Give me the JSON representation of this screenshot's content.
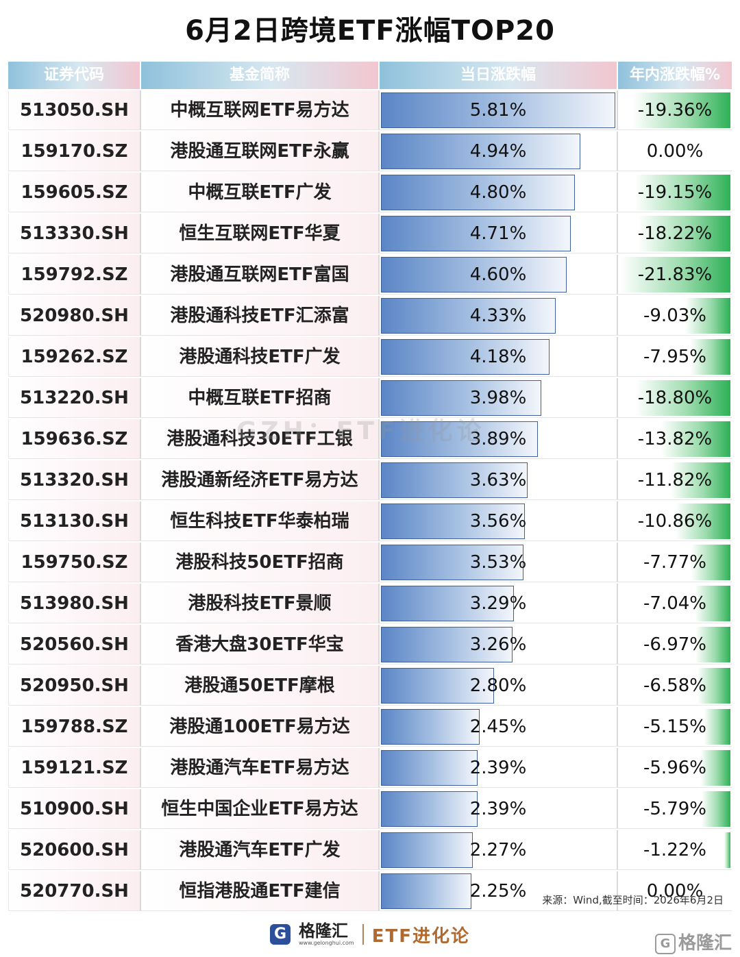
{
  "title": "6月2日跨境ETF涨幅TOP20",
  "columns": [
    "证券代码",
    "基金简称",
    "当日涨跌幅",
    "年内涨跌幅%"
  ],
  "watermark": "GZH：ETF进化论",
  "source": "来源：Wind,截至时间：2026年6月2日",
  "footer": {
    "logo_char": "G",
    "brand_name": "格隆汇",
    "brand_url": "www.gelonghui.com",
    "etf_brand": "ETF进化论",
    "corner_text": "格隆汇"
  },
  "colors": {
    "day_bar": "#5b86c6",
    "ytd_bar": "#2eb157",
    "header": "#8fc1dc"
  },
  "chart_data": {
    "type": "table",
    "rows": [
      {
        "code": "513050.SH",
        "name": "中概互联网ETF易方达",
        "day": 5.81,
        "day_label": "5.81%",
        "ytd": -19.36,
        "ytd_label": "-19.36%"
      },
      {
        "code": "159170.SZ",
        "name": "港股通互联网ETF永赢",
        "day": 4.94,
        "day_label": "4.94%",
        "ytd": 0.0,
        "ytd_label": "0.00%"
      },
      {
        "code": "159605.SZ",
        "name": "中概互联ETF广发",
        "day": 4.8,
        "day_label": "4.80%",
        "ytd": -19.15,
        "ytd_label": "-19.15%"
      },
      {
        "code": "513330.SH",
        "name": "恒生互联网ETF华夏",
        "day": 4.71,
        "day_label": "4.71%",
        "ytd": -18.22,
        "ytd_label": "-18.22%"
      },
      {
        "code": "159792.SZ",
        "name": "港股通互联网ETF富国",
        "day": 4.6,
        "day_label": "4.60%",
        "ytd": -21.83,
        "ytd_label": "-21.83%"
      },
      {
        "code": "520980.SH",
        "name": "港股通科技ETF汇添富",
        "day": 4.33,
        "day_label": "4.33%",
        "ytd": -9.03,
        "ytd_label": "-9.03%"
      },
      {
        "code": "159262.SZ",
        "name": "港股通科技ETF广发",
        "day": 4.18,
        "day_label": "4.18%",
        "ytd": -7.95,
        "ytd_label": "-7.95%"
      },
      {
        "code": "513220.SH",
        "name": "中概互联ETF招商",
        "day": 3.98,
        "day_label": "3.98%",
        "ytd": -18.8,
        "ytd_label": "-18.80%"
      },
      {
        "code": "159636.SZ",
        "name": "港股通科技30ETF工银",
        "day": 3.89,
        "day_label": "3.89%",
        "ytd": -13.82,
        "ytd_label": "-13.82%"
      },
      {
        "code": "513320.SH",
        "name": "港股通新经济ETF易方达",
        "day": 3.63,
        "day_label": "3.63%",
        "ytd": -11.82,
        "ytd_label": "-11.82%"
      },
      {
        "code": "513130.SH",
        "name": "恒生科技ETF华泰柏瑞",
        "day": 3.56,
        "day_label": "3.56%",
        "ytd": -10.86,
        "ytd_label": "-10.86%"
      },
      {
        "code": "159750.SZ",
        "name": "港股科技50ETF招商",
        "day": 3.53,
        "day_label": "3.53%",
        "ytd": -7.77,
        "ytd_label": "-7.77%"
      },
      {
        "code": "513980.SH",
        "name": "港股科技ETF景顺",
        "day": 3.29,
        "day_label": "3.29%",
        "ytd": -7.04,
        "ytd_label": "-7.04%"
      },
      {
        "code": "520560.SH",
        "name": "香港大盘30ETF华宝",
        "day": 3.26,
        "day_label": "3.26%",
        "ytd": -6.97,
        "ytd_label": "-6.97%"
      },
      {
        "code": "520950.SH",
        "name": "港股通50ETF摩根",
        "day": 2.8,
        "day_label": "2.80%",
        "ytd": -6.58,
        "ytd_label": "-6.58%"
      },
      {
        "code": "159788.SZ",
        "name": "港股通100ETF易方达",
        "day": 2.45,
        "day_label": "2.45%",
        "ytd": -5.15,
        "ytd_label": "-5.15%"
      },
      {
        "code": "159121.SZ",
        "name": "港股通汽车ETF易方达",
        "day": 2.39,
        "day_label": "2.39%",
        "ytd": -5.96,
        "ytd_label": "-5.96%"
      },
      {
        "code": "510900.SH",
        "name": "恒生中国企业ETF易方达",
        "day": 2.39,
        "day_label": "2.39%",
        "ytd": -5.79,
        "ytd_label": "-5.79%"
      },
      {
        "code": "520600.SH",
        "name": "港股通汽车ETF广发",
        "day": 2.27,
        "day_label": "2.27%",
        "ytd": -1.22,
        "ytd_label": "-1.22%"
      },
      {
        "code": "520770.SH",
        "name": "恒指港股通ETF建信",
        "day": 2.25,
        "day_label": "2.25%",
        "ytd": 0.0,
        "ytd_label": "0.00%"
      }
    ]
  }
}
